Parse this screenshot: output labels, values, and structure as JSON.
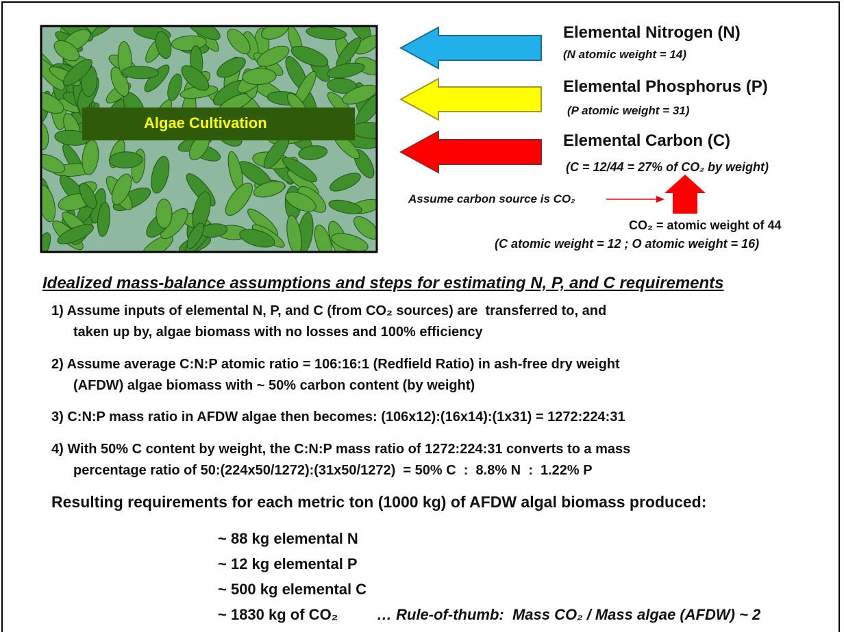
{
  "image": {
    "label": "Algae Cultivation"
  },
  "inputs": [
    {
      "title": "Elemental Nitrogen (N)",
      "note": "(N atomic weight = 14)"
    },
    {
      "title": "Elemental Phosphorus (P)",
      "note": "(P atomic weight = 31)"
    },
    {
      "title": "Elemental Carbon (C)",
      "note": "(C = 12/44 = 27% of CO₂ by weight)"
    }
  ],
  "carbon_source": {
    "label": "Assume carbon source is CO₂",
    "co2": "CO₂ = atomic weight of 44",
    "weights": "(C atomic weight = 12 ; O atomic weight = 16)"
  },
  "section_title": "Idealized mass-balance assumptions and steps for estimating N, P, and C requirements",
  "steps": [
    [
      "1) Assume inputs of elemental N, P, and C (from CO₂ sources) are  transferred to, and",
      "taken up by, algae biomass with no losses and 100% efficiency"
    ],
    [
      "2) Assume average C:N:P atomic ratio = 106:16:1 (Redfield Ratio) in ash-free dry weight",
      "(AFDW) algae biomass with ~ 50% carbon content (by weight)"
    ],
    [
      "3) C:N:P mass ratio in AFDW algae then becomes: (106x12):(16x14):(1x31) = 1272:224:31"
    ],
    [
      "4) With 50% C content by weight, the C:N:P mass ratio of 1272:224:31 converts to a mass",
      "percentage ratio of 50:(224x50/1272):(31x50/1272)  = 50% C  :  8.8% N  :  1.22% P"
    ]
  ],
  "results_title": "Resulting requirements for each metric ton (1000 kg) of AFDW algal biomass produced:",
  "results": [
    "~ 88 kg elemental N",
    "~ 12 kg elemental P",
    "~ 500 kg elemental C",
    "~ 1830 kg of CO₂"
  ],
  "rule_of_thumb": "… Rule-of-thumb:  Mass CO₂ / Mass algae (AFDW) ~ 2"
}
